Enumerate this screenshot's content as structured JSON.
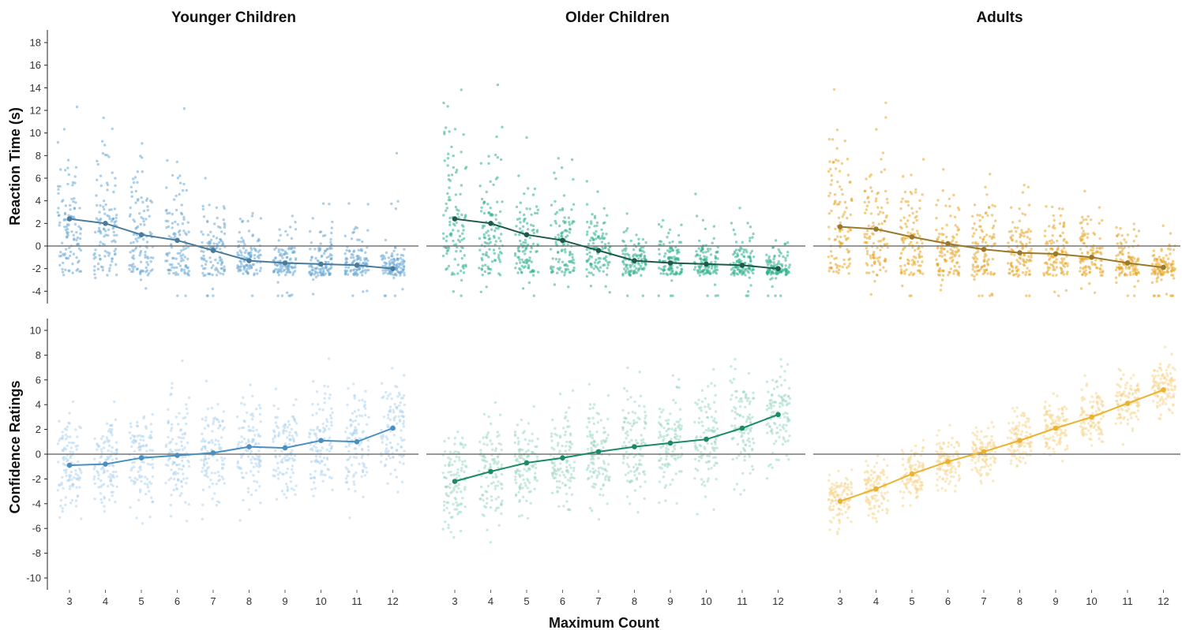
{
  "chart_data": {
    "type": "scatter",
    "layout": "faceted-grid",
    "column_titles": [
      "Younger Children",
      "Older Children",
      "Adults"
    ],
    "row_titles": [
      "Reaction Time (s)",
      "Confidence Ratings"
    ],
    "xlabel": "Maximum Count",
    "x": [
      3,
      4,
      5,
      6,
      7,
      8,
      9,
      10,
      11,
      12
    ],
    "x_ticks": [
      "3",
      "4",
      "5",
      "6",
      "7",
      "8",
      "9",
      "10",
      "11",
      "12"
    ],
    "reference_line_y": 0,
    "grid": false,
    "rows": [
      {
        "ylabel": "Reaction Time (s)",
        "ylim": [
          -5,
          19
        ],
        "y_ticks": [
          -4,
          -2,
          0,
          2,
          4,
          6,
          8,
          10,
          12,
          14,
          16,
          18
        ],
        "panels": [
          {
            "group": "Younger Children",
            "color": "#4a7a9c",
            "point_color": "#6aaad6",
            "mean": [
              2.4,
              2.0,
              1.0,
              0.5,
              -0.4,
              -1.3,
              -1.5,
              -1.6,
              -1.7,
              -2.0
            ]
          },
          {
            "group": "Older Children",
            "color": "#1f5a48",
            "point_color": "#2fb08c",
            "mean": [
              2.4,
              2.0,
              1.0,
              0.5,
              -0.4,
              -1.3,
              -1.5,
              -1.6,
              -1.7,
              -2.0
            ]
          },
          {
            "group": "Adults",
            "color": "#9a7a2a",
            "point_color": "#e8a626",
            "mean": [
              1.7,
              1.5,
              0.8,
              0.2,
              -0.3,
              -0.6,
              -0.7,
              -1.0,
              -1.5,
              -1.9
            ]
          }
        ]
      },
      {
        "ylabel": "Confidence Ratings",
        "ylim": [
          -11,
          11
        ],
        "y_ticks": [
          -10,
          -8,
          -6,
          -4,
          -2,
          0,
          2,
          4,
          6,
          8,
          10
        ],
        "panels": [
          {
            "group": "Younger Children",
            "color": "#4a8fbf",
            "point_color": "#aed4ef",
            "mean": [
              -0.9,
              -0.8,
              -0.3,
              -0.1,
              0.1,
              0.6,
              0.5,
              1.1,
              1.0,
              2.1
            ]
          },
          {
            "group": "Older Children",
            "color": "#1a8a68",
            "point_color": "#9ed8c2",
            "mean": [
              -2.2,
              -1.4,
              -0.7,
              -0.3,
              0.2,
              0.6,
              0.9,
              1.2,
              2.1,
              3.2
            ]
          },
          {
            "group": "Adults",
            "color": "#eab230",
            "point_color": "#f6d68e",
            "mean": [
              -3.8,
              -2.8,
              -1.6,
              -0.6,
              0.2,
              1.1,
              2.1,
              3.0,
              4.1,
              5.2
            ]
          }
        ]
      }
    ]
  }
}
